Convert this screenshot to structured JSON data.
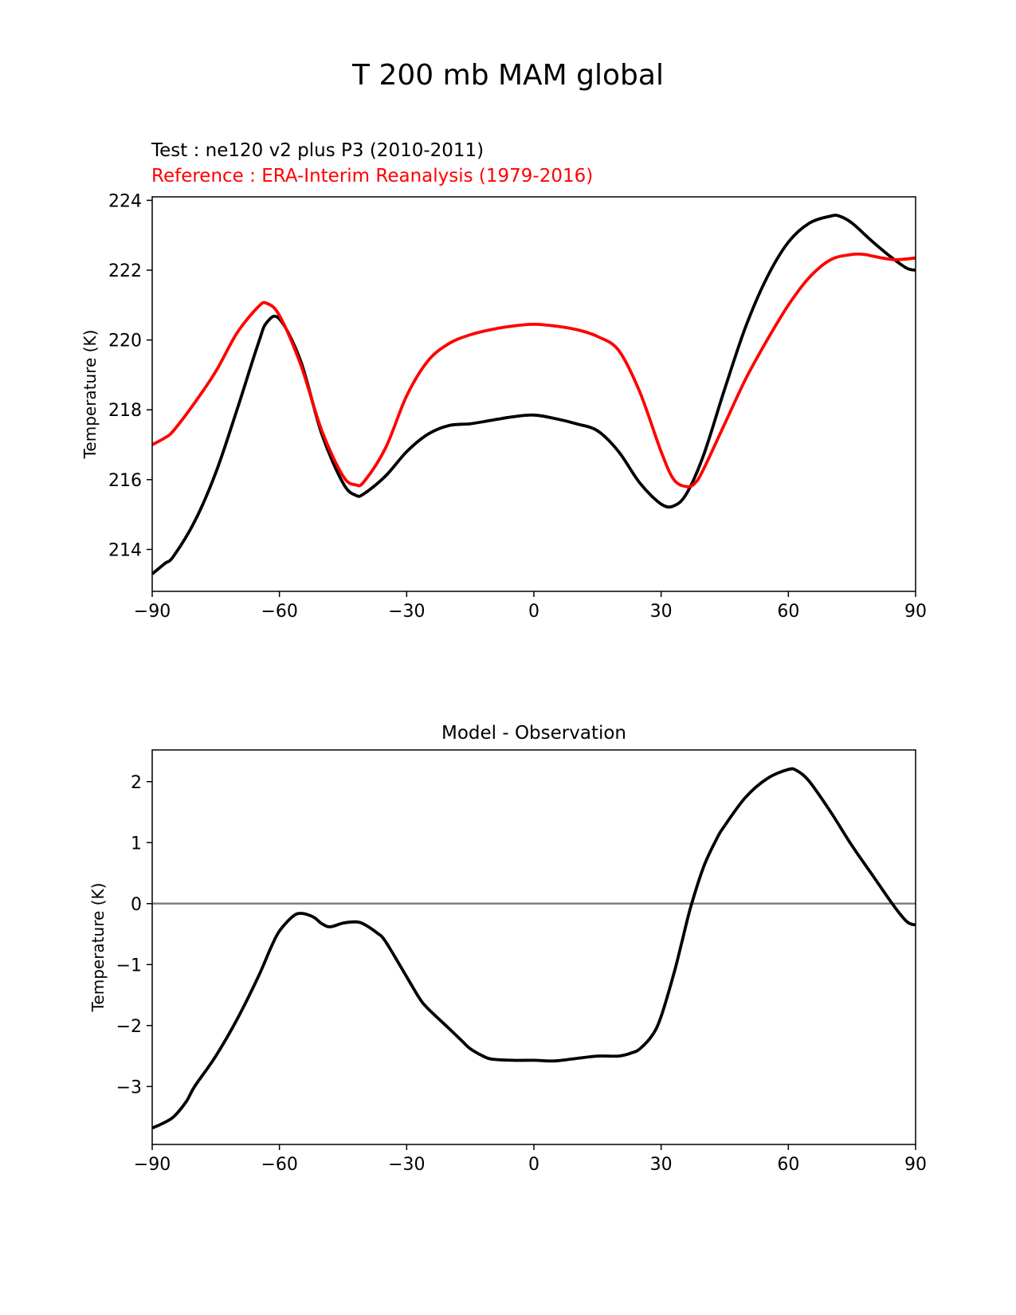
{
  "figure": {
    "suptitle": "T 200 mb MAM global",
    "test_label": "Test : ne120 v2 plus P3 (2010-2011)",
    "reference_label": "Reference : ERA-Interim Reanalysis (1979-2016)",
    "colors": {
      "test": "#000000",
      "reference": "#ff0000",
      "zero_line": "#808080"
    }
  },
  "chart_data": [
    {
      "type": "line",
      "title": "",
      "xlabel": "",
      "ylabel": "Temperature (K)",
      "xlim": [
        -90,
        90
      ],
      "ylim": [
        212.8,
        224.1
      ],
      "xticks": [
        -90,
        -60,
        -30,
        0,
        30,
        60,
        90
      ],
      "xtick_labels": [
        "−90",
        "−60",
        "−30",
        "0",
        "30",
        "60",
        "90"
      ],
      "yticks": [
        214,
        216,
        218,
        220,
        222,
        224
      ],
      "ytick_labels": [
        "214",
        "216",
        "218",
        "220",
        "222",
        "224"
      ],
      "grid": false,
      "series": [
        {
          "name": "Test : ne120 v2 plus P3 (2010-2011)",
          "color": "#000000",
          "x": [
            -90,
            -87,
            -85,
            -80,
            -75,
            -70,
            -65,
            -63,
            -60,
            -55,
            -50,
            -45,
            -42,
            -40,
            -35,
            -30,
            -25,
            -20,
            -15,
            -10,
            -5,
            0,
            5,
            10,
            15,
            20,
            25,
            30,
            33,
            36,
            40,
            45,
            50,
            55,
            60,
            65,
            70,
            72,
            75,
            80,
            85,
            88,
            90
          ],
          "y": [
            213.3,
            213.6,
            213.8,
            214.8,
            216.2,
            218.0,
            219.9,
            220.5,
            220.6,
            219.4,
            217.3,
            215.9,
            215.55,
            215.6,
            216.1,
            216.8,
            217.3,
            217.55,
            217.6,
            217.7,
            217.8,
            217.85,
            217.75,
            217.6,
            217.4,
            216.8,
            215.9,
            215.3,
            215.25,
            215.6,
            216.7,
            218.6,
            220.4,
            221.8,
            222.8,
            223.35,
            223.55,
            223.55,
            223.35,
            222.8,
            222.3,
            222.05,
            222.0
          ]
        },
        {
          "name": "Reference : ERA-Interim Reanalysis (1979-2016)",
          "color": "#ff0000",
          "x": [
            -90,
            -87,
            -85,
            -80,
            -75,
            -70,
            -65,
            -63,
            -60,
            -55,
            -50,
            -45,
            -42,
            -40,
            -35,
            -30,
            -25,
            -20,
            -15,
            -10,
            -5,
            0,
            5,
            10,
            15,
            20,
            25,
            30,
            33,
            36,
            38,
            40,
            45,
            50,
            55,
            60,
            65,
            70,
            75,
            78,
            80,
            85,
            90
          ],
          "y": [
            217.0,
            217.2,
            217.4,
            218.2,
            219.1,
            220.2,
            220.95,
            221.05,
            220.7,
            219.3,
            217.4,
            216.1,
            215.85,
            215.95,
            216.9,
            218.4,
            219.4,
            219.9,
            220.15,
            220.3,
            220.4,
            220.45,
            220.4,
            220.3,
            220.1,
            219.7,
            218.5,
            216.8,
            216.0,
            215.8,
            215.9,
            216.3,
            217.6,
            218.9,
            220.0,
            221.0,
            221.8,
            222.3,
            222.45,
            222.45,
            222.4,
            222.3,
            222.35
          ]
        }
      ]
    },
    {
      "type": "line",
      "title": "Model - Observation",
      "xlabel": "",
      "ylabel": "Temperature (K)",
      "xlim": [
        -90,
        90
      ],
      "ylim": [
        -3.95,
        2.52
      ],
      "xticks": [
        -90,
        -60,
        -30,
        0,
        30,
        60,
        90
      ],
      "xtick_labels": [
        "−90",
        "−60",
        "−30",
        "0",
        "30",
        "60",
        "90"
      ],
      "yticks": [
        -3,
        -2,
        -1,
        0,
        1,
        2
      ],
      "ytick_labels": [
        "−3",
        "−2",
        "−1",
        "0",
        "1",
        "2"
      ],
      "grid": false,
      "reference_line": 0,
      "series": [
        {
          "name": "Model - Observation",
          "color": "#000000",
          "x": [
            -90,
            -88,
            -85,
            -82,
            -80,
            -75,
            -70,
            -65,
            -62,
            -60,
            -57,
            -55,
            -52,
            -50,
            -48,
            -45,
            -42,
            -40,
            -37,
            -35,
            -30,
            -27,
            -25,
            -20,
            -17,
            -15,
            -12,
            -10,
            -5,
            0,
            5,
            10,
            15,
            20,
            23,
            25,
            28,
            30,
            33,
            35,
            37,
            40,
            43,
            45,
            50,
            55,
            60,
            62,
            65,
            70,
            75,
            80,
            85,
            88,
            90
          ],
          "y": [
            -3.68,
            -3.62,
            -3.5,
            -3.25,
            -3.0,
            -2.5,
            -1.9,
            -1.2,
            -0.72,
            -0.45,
            -0.22,
            -0.16,
            -0.22,
            -0.33,
            -0.38,
            -0.32,
            -0.3,
            -0.34,
            -0.48,
            -0.62,
            -1.2,
            -1.55,
            -1.72,
            -2.05,
            -2.25,
            -2.38,
            -2.5,
            -2.55,
            -2.57,
            -2.57,
            -2.58,
            -2.54,
            -2.5,
            -2.5,
            -2.45,
            -2.38,
            -2.15,
            -1.85,
            -1.15,
            -0.6,
            -0.05,
            0.6,
            1.05,
            1.28,
            1.75,
            2.05,
            2.2,
            2.18,
            2.0,
            1.5,
            0.95,
            0.45,
            -0.05,
            -0.3,
            -0.35
          ]
        }
      ]
    }
  ]
}
